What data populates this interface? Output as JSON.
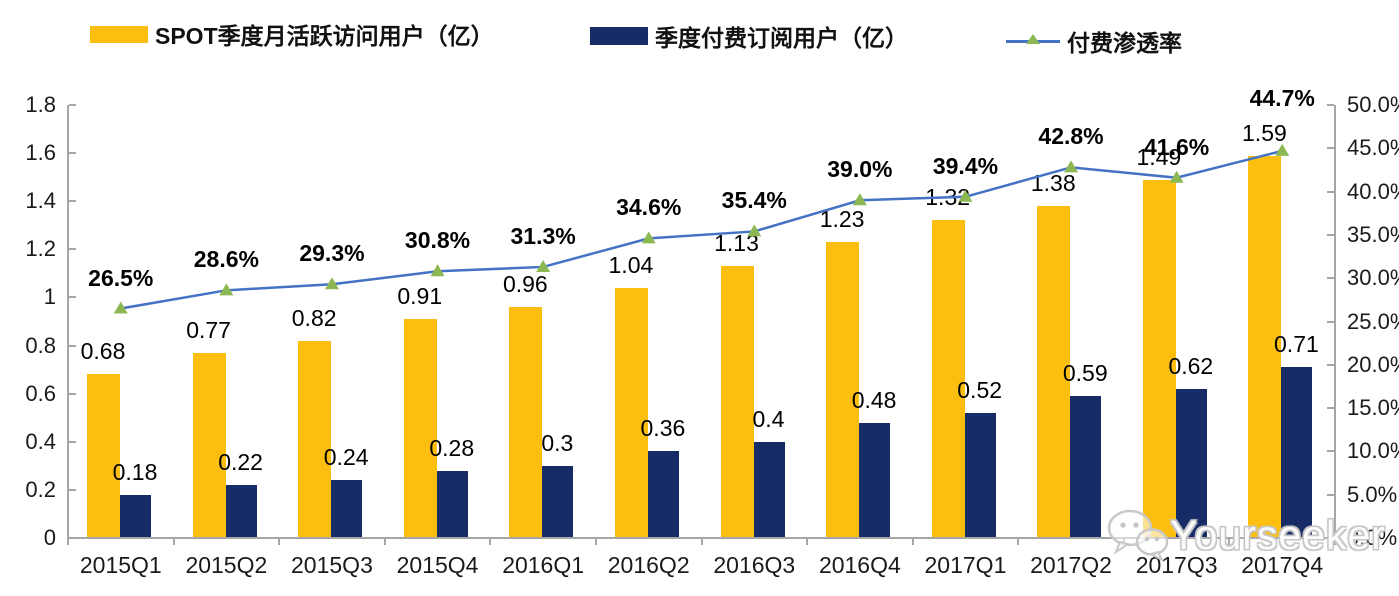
{
  "legend": [
    {
      "label": "SPOT季度月活跃访问用户（亿）",
      "swatch": "bar",
      "color": "#FCBF10"
    },
    {
      "label": "季度付费订阅用户（亿）",
      "swatch": "bar",
      "color": "#172B66"
    },
    {
      "label": "付费渗透率",
      "swatch": "line",
      "color": "#4472C4",
      "marker_color": "#8CB854"
    }
  ],
  "chart_data": {
    "type": "combo-bar-line",
    "categories": [
      "2015Q1",
      "2015Q2",
      "2015Q3",
      "2015Q4",
      "2016Q1",
      "2016Q2",
      "2016Q3",
      "2016Q4",
      "2017Q1",
      "2017Q2",
      "2017Q3",
      "2017Q4"
    ],
    "series": [
      {
        "name": "SPOT季度月活跃访问用户（亿）",
        "type": "bar",
        "axis": "left",
        "color": "#FCBF10",
        "values": [
          0.68,
          0.77,
          0.82,
          0.91,
          0.96,
          1.04,
          1.13,
          1.23,
          1.32,
          1.38,
          1.49,
          1.59
        ],
        "labels": [
          "0.68",
          "0.77",
          "0.82",
          "0.91",
          "0.96",
          "1.04",
          "1.13",
          "1.23",
          "1.32",
          "1.38",
          "1.49",
          "1.59"
        ]
      },
      {
        "name": "季度付费订阅用户（亿）",
        "type": "bar",
        "axis": "left",
        "color": "#172B66",
        "values": [
          0.18,
          0.22,
          0.24,
          0.28,
          0.3,
          0.36,
          0.4,
          0.48,
          0.52,
          0.59,
          0.62,
          0.71
        ],
        "labels": [
          "0.18",
          "0.22",
          "0.24",
          "0.28",
          "0.3",
          "0.36",
          "0.4",
          "0.48",
          "0.52",
          "0.59",
          "0.62",
          "0.71"
        ]
      },
      {
        "name": "付费渗透率",
        "type": "line",
        "axis": "right",
        "color": "#4472C4",
        "marker_color": "#8CB854",
        "values": [
          26.5,
          28.6,
          29.3,
          30.8,
          31.3,
          34.6,
          35.4,
          39.0,
          39.4,
          42.8,
          41.6,
          44.7
        ],
        "labels": [
          "26.5%",
          "28.6%",
          "29.3%",
          "30.8%",
          "31.3%",
          "34.6%",
          "35.4%",
          "39.0%",
          "39.4%",
          "42.8%",
          "41.6%",
          "44.7%"
        ]
      }
    ],
    "left_axis": {
      "min": 0,
      "max": 1.8,
      "step": 0.2,
      "ticks": [
        "1.8",
        "1.6",
        "1.4",
        "1.2",
        "1",
        "0.8",
        "0.6",
        "0.4",
        "0.2",
        "0"
      ]
    },
    "right_axis": {
      "min": 0,
      "max": 50,
      "step": 5,
      "ticks": [
        "50.0%",
        "45.0%",
        "40.0%",
        "35.0%",
        "30.0%",
        "25.0%",
        "20.0%",
        "15.0%",
        "10.0%",
        "5.0%",
        "0.0%"
      ]
    },
    "grid": false,
    "legend_position": "top"
  },
  "watermark": {
    "text": "Yourseeker",
    "icon": "wechat-icon"
  },
  "colors": {
    "bar_primary": "#FCBF10",
    "bar_secondary": "#172B66",
    "line": "#4472C4",
    "marker": "#8CB854",
    "axis": "#a6a6a6",
    "tick_text": "#1a1a1a",
    "watermark": "#c6c6c6"
  }
}
